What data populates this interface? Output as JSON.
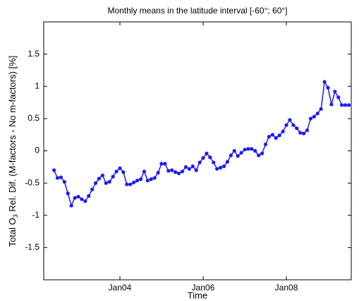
{
  "chart_data": {
    "type": "line",
    "title": "Monthly means in the latitude interval [-60°; 60°]",
    "xlabel": "Time",
    "ylabel": {
      "prefix": "Total O",
      "subscript": "3",
      "suffix": " Rel. Dif. (M-factors - No m-factors) [%]"
    },
    "categories": [
      null,
      null,
      null,
      null,
      null,
      null,
      null,
      null,
      null,
      null,
      null,
      null,
      null,
      null,
      null,
      null,
      null,
      null,
      null,
      "Jan04",
      null,
      null,
      null,
      null,
      null,
      null,
      null,
      null,
      null,
      null,
      null,
      null,
      null,
      null,
      null,
      null,
      null,
      null,
      null,
      null,
      null,
      null,
      null,
      "Jan06",
      null,
      null,
      null,
      null,
      null,
      null,
      null,
      null,
      null,
      null,
      null,
      null,
      null,
      null,
      null,
      null,
      null,
      null,
      null,
      null,
      null,
      null,
      null,
      "Jan08",
      null,
      null,
      null,
      null,
      null,
      null,
      null,
      null,
      null,
      null,
      null,
      null,
      null,
      null,
      null,
      null,
      null,
      null
    ],
    "values": [
      -0.3,
      -0.42,
      -0.41,
      -0.48,
      -0.66,
      -0.85,
      -0.73,
      -0.71,
      -0.75,
      -0.78,
      -0.7,
      -0.6,
      -0.5,
      -0.43,
      -0.38,
      -0.5,
      -0.48,
      -0.4,
      -0.32,
      -0.27,
      -0.33,
      -0.52,
      -0.52,
      -0.49,
      -0.46,
      -0.44,
      -0.32,
      -0.46,
      -0.44,
      -0.42,
      -0.34,
      -0.2,
      -0.2,
      -0.31,
      -0.3,
      -0.33,
      -0.35,
      -0.32,
      -0.25,
      -0.28,
      -0.24,
      -0.3,
      -0.18,
      -0.11,
      -0.04,
      -0.1,
      -0.18,
      -0.28,
      -0.26,
      -0.24,
      -0.17,
      -0.07,
      0.0,
      -0.08,
      -0.03,
      0.02,
      0.03,
      0.03,
      0.0,
      -0.07,
      -0.04,
      0.1,
      0.22,
      0.25,
      0.2,
      0.24,
      0.3,
      0.4,
      0.48,
      0.4,
      0.35,
      0.28,
      0.27,
      0.32,
      0.5,
      0.53,
      0.58,
      0.65,
      1.07,
      0.98,
      0.72,
      0.92,
      0.83,
      0.71,
      0.71,
      0.71
    ],
    "color": "#1a1aff",
    "ylim": [
      -2,
      2
    ],
    "yticks": [
      -1.5,
      -1,
      -0.5,
      0,
      0.5,
      1,
      1.5
    ]
  }
}
